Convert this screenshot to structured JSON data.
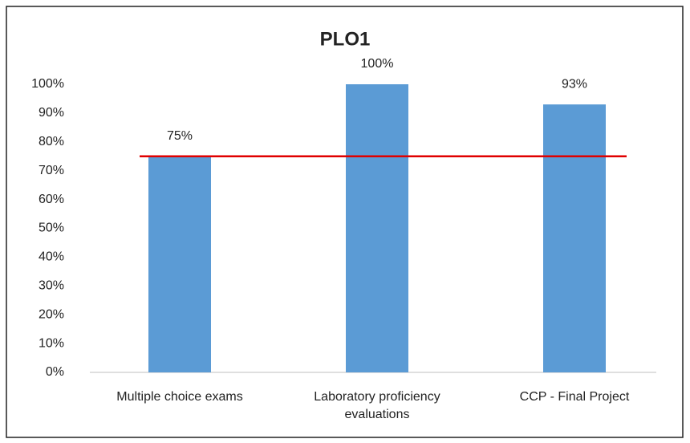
{
  "chart_data": {
    "type": "bar",
    "title": "PLO1",
    "categories": [
      "Multiple choice exams",
      "Laboratory proficiency evaluations",
      "CCP - Final Project"
    ],
    "values": [
      75,
      100,
      93
    ],
    "value_labels": [
      "75%",
      "100%",
      "93%"
    ],
    "color": "#5b9bd5",
    "ylim": [
      0,
      100
    ],
    "yticks": [
      {
        "value": 0,
        "label": "0%"
      },
      {
        "value": 10,
        "label": "10%"
      },
      {
        "value": 20,
        "label": "20%"
      },
      {
        "value": 30,
        "label": "30%"
      },
      {
        "value": 40,
        "label": "40%"
      },
      {
        "value": 50,
        "label": "50%"
      },
      {
        "value": 60,
        "label": "60%"
      },
      {
        "value": 70,
        "label": "70%"
      },
      {
        "value": 80,
        "label": "80%"
      },
      {
        "value": 90,
        "label": "90%"
      },
      {
        "value": 100,
        "label": "100%"
      }
    ],
    "grid": false,
    "reference_line": {
      "value": 75,
      "color": "#e00000"
    }
  }
}
